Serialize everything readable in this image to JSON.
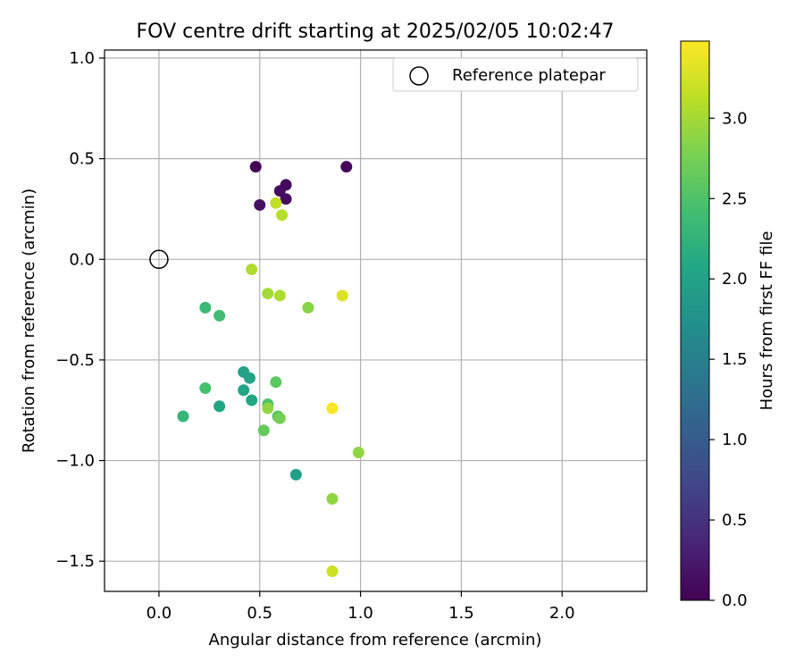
{
  "chart_data": {
    "type": "scatter",
    "title": "FOV centre drift starting at 2025/02/05 10:02:47",
    "xlabel": "Angular distance from reference (arcmin)",
    "ylabel": "Rotation from reference (arcmin)",
    "xlim": [
      -0.27,
      2.42
    ],
    "ylim": [
      -1.65,
      1.04
    ],
    "xticks": [
      0.0,
      0.5,
      1.0,
      1.5,
      2.0
    ],
    "xtick_labels": [
      "0.0",
      "0.5",
      "1.0",
      "1.5",
      "2.0"
    ],
    "yticks": [
      -1.5,
      -1.0,
      -0.5,
      0.0,
      0.5,
      1.0
    ],
    "ytick_labels": [
      "−1.5",
      "−1.0",
      "−0.5",
      "0.0",
      "0.5",
      "1.0"
    ],
    "grid": true,
    "legend": {
      "position": "top-right",
      "entries": [
        "Reference platepar"
      ]
    },
    "reference_point": {
      "x": 0.0,
      "y": 0.0,
      "label": "Reference platepar"
    },
    "colorbar": {
      "label": "Hours from first FF file",
      "colormap": "viridis",
      "range": [
        0.0,
        3.48
      ],
      "ticks": [
        0.0,
        0.5,
        1.0,
        1.5,
        2.0,
        2.5,
        3.0
      ],
      "tick_labels": [
        "0.0",
        "0.5",
        "1.0",
        "1.5",
        "2.0",
        "2.5",
        "3.0"
      ]
    },
    "points": [
      {
        "x": 0.48,
        "y": 0.46,
        "hours": 0.02
      },
      {
        "x": 0.93,
        "y": 0.46,
        "hours": 0.05
      },
      {
        "x": 0.63,
        "y": 0.37,
        "hours": 0.08
      },
      {
        "x": 0.6,
        "y": 0.34,
        "hours": 0.1
      },
      {
        "x": 0.63,
        "y": 0.3,
        "hours": 0.12
      },
      {
        "x": 0.5,
        "y": 0.27,
        "hours": 0.15
      },
      {
        "x": 0.68,
        "y": -1.07,
        "hours": 1.95
      },
      {
        "x": 0.42,
        "y": -0.56,
        "hours": 2.0
      },
      {
        "x": 0.45,
        "y": -0.59,
        "hours": 2.02
      },
      {
        "x": 0.42,
        "y": -0.65,
        "hours": 2.05
      },
      {
        "x": 0.3,
        "y": -0.73,
        "hours": 2.05
      },
      {
        "x": 0.46,
        "y": -0.7,
        "hours": 2.08
      },
      {
        "x": 0.12,
        "y": -0.78,
        "hours": 2.3
      },
      {
        "x": 0.23,
        "y": -0.24,
        "hours": 2.35
      },
      {
        "x": 0.3,
        "y": -0.28,
        "hours": 2.4
      },
      {
        "x": 0.23,
        "y": -0.64,
        "hours": 2.45
      },
      {
        "x": 0.54,
        "y": -0.72,
        "hours": 2.5
      },
      {
        "x": 0.59,
        "y": -0.78,
        "hours": 2.55
      },
      {
        "x": 0.58,
        "y": -0.61,
        "hours": 2.6
      },
      {
        "x": 0.52,
        "y": -0.85,
        "hours": 2.65
      },
      {
        "x": 0.6,
        "y": -0.79,
        "hours": 2.75
      },
      {
        "x": 0.74,
        "y": -0.24,
        "hours": 2.85
      },
      {
        "x": 0.54,
        "y": -0.74,
        "hours": 2.9
      },
      {
        "x": 0.86,
        "y": -1.19,
        "hours": 2.9
      },
      {
        "x": 0.99,
        "y": -0.96,
        "hours": 2.9
      },
      {
        "x": 0.54,
        "y": -0.17,
        "hours": 3.0
      },
      {
        "x": 0.6,
        "y": -0.18,
        "hours": 3.05
      },
      {
        "x": 0.46,
        "y": -0.05,
        "hours": 3.05
      },
      {
        "x": 0.61,
        "y": 0.22,
        "hours": 3.1
      },
      {
        "x": 0.58,
        "y": 0.28,
        "hours": 3.15
      },
      {
        "x": 0.86,
        "y": -1.55,
        "hours": 3.2
      },
      {
        "x": 0.91,
        "y": -0.18,
        "hours": 3.3
      },
      {
        "x": 0.86,
        "y": -0.74,
        "hours": 3.45
      }
    ]
  }
}
